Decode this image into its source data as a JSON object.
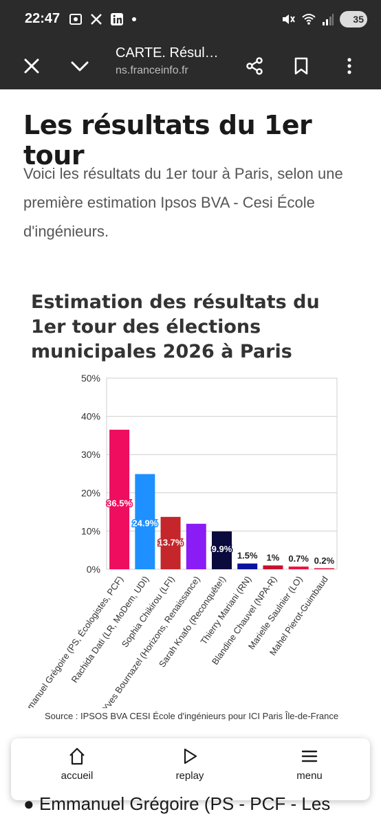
{
  "status_bar": {
    "time": "22:47",
    "battery": "35",
    "icons": [
      "screenshot-icon",
      "x-logo-icon",
      "linkedin-icon",
      "dot-icon",
      "mute-icon",
      "wifi-icon",
      "signal-icon",
      "battery-icon"
    ]
  },
  "toolbar": {
    "title": "CARTE. Résul…",
    "url": "ns.franceinfo.fr"
  },
  "article": {
    "heading": "Les résultats du 1er tour",
    "intro": "Voici les résultats du 1er tour à Paris, selon une première estimation Ipsos BVA - Cesi École d'ingénieurs."
  },
  "chart_data": {
    "type": "bar",
    "title": "Estimation des résultats du 1er tour des élections municipales 2026 à Paris",
    "categories": [
      "Emmanuel Grégoire (PS, Écologistes, PCF)",
      "Rachida Dati (LR, MoDem, UDI)",
      "Sophia Chikirou (LFI)",
      "Pierre-Yves Bournazel (Horizons, Renaissance)",
      "Sarah Knafo (Reconquête!)",
      "Thierry Mariani (RN)",
      "Blandine Chauvel (NPA-R)",
      "Marielle Saulnier (LO)",
      "Mahel Pierot-Guimbaud"
    ],
    "values": [
      36.5,
      24.9,
      13.7,
      11.9,
      9.9,
      1.5,
      1,
      0.7,
      0.2
    ],
    "data_labels": [
      "36.5%",
      "24.9%",
      "13.7%",
      "",
      "9.9%",
      "1.5%",
      "1%",
      "0.7%",
      "0.2%"
    ],
    "colors": [
      "#ee0d5e",
      "#1e90ff",
      "#c4262b",
      "#8a1cf5",
      "#0a0a3c",
      "#0a12a0",
      "#c8102e",
      "#e8123c",
      "#e8123c"
    ],
    "ylim": [
      0,
      50
    ],
    "yticks": [
      "0%",
      "10%",
      "20%",
      "30%",
      "40%",
      "50%"
    ],
    "grid": true,
    "source": "Source : IPSOS BVA CESI École d'ingénieurs pour ICI Paris Île-de-France"
  },
  "bottom_nav": {
    "home_label": "accueil",
    "replay_label": "replay",
    "menu_label": "menu"
  },
  "bottom_text": "Emmanuel Grégoire (PS - PCF - Les"
}
